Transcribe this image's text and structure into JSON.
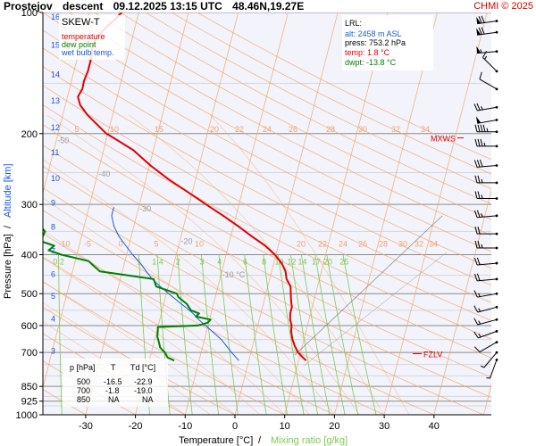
{
  "header": {
    "station": "Prostejov",
    "mode": "descent",
    "datetime": "09.12.2025 13:15 UTC",
    "coords": "48.46N,19.27E",
    "brand": "CHMI © 2025"
  },
  "chart_data": {
    "type": "line",
    "title": "SKEW-T",
    "xlabel": "Temperature [°C]",
    "xlabel_sep": "/",
    "xlabel2": "Mixing ratio [g/kg]",
    "ylabel_left": "Pressure [hPa]",
    "ylabel_sep": "/",
    "ylabel_right": "Altitude [km]",
    "x_ticks": [
      "-30",
      "-20",
      "-10",
      "0",
      "10",
      "20",
      "30",
      "40"
    ],
    "x_tick_values": [
      -30,
      -20,
      -10,
      0,
      10,
      20,
      30,
      40
    ],
    "pressure_ticks": [
      "100",
      "200",
      "300",
      "400",
      "500",
      "600",
      "700",
      "850",
      "925",
      "1000"
    ],
    "pressure_tick_values": [
      100,
      200,
      300,
      400,
      500,
      600,
      700,
      850,
      925,
      1000
    ],
    "altitude_ticks": [
      "16",
      "15",
      "14",
      "13",
      "12",
      "11",
      "10",
      "9",
      "8",
      "7",
      "6",
      "5",
      "4",
      "3"
    ],
    "altitude_pressures": [
      102,
      120,
      142,
      165,
      192,
      222,
      257,
      296,
      340,
      390,
      445,
      505,
      575,
      690
    ],
    "legend": {
      "items": [
        {
          "label": "temperature",
          "color": "#e00000"
        },
        {
          "label": "dew point",
          "color": "#008000"
        },
        {
          "label": "wet bulb temp.",
          "color": "#1a56e0"
        }
      ]
    },
    "lrl": {
      "heading": "LRL:",
      "alt": "alt: 2458 m ASL",
      "press": "press: 753.2 hPa",
      "temp": "temp: 1.8 °C",
      "dwpt": "dwpt: -13.8 °C"
    },
    "level_markers": [
      {
        "label": "MXWS",
        "pressure": 205
      },
      {
        "label": "FZLV",
        "pressure": 705
      }
    ],
    "table": {
      "headers": [
        "p [hPa]",
        "T",
        "Td [°C]"
      ],
      "rows": [
        [
          "500",
          "-16.5",
          "-22.9"
        ],
        [
          "700",
          "-1.8",
          "-19.0"
        ],
        [
          "850",
          "NA",
          "NA"
        ]
      ]
    },
    "isotherm_labels": {
      "values": [
        "-80 °C",
        "-70",
        "-60",
        "-50",
        "-40",
        "-30",
        "-20",
        "-10 °C"
      ],
      "pressures": [
        118,
        146,
        175,
        211,
        256,
        312,
        376,
        455
      ]
    },
    "mixing_ratio_labels": [
      "0.2",
      "1",
      "1.4",
      "2",
      "3",
      "4",
      "6",
      "8",
      "10",
      "12",
      "14",
      "17",
      "20",
      "25"
    ],
    "mixing_ratio_values": [
      0.2,
      1,
      1.4,
      2,
      3,
      4,
      6,
      8,
      10,
      12,
      14,
      17,
      20,
      25
    ],
    "adiabat_labels_upper": [
      "5",
      "10",
      "15",
      "20",
      "22",
      "24",
      "26",
      "28",
      "30",
      "32",
      "34"
    ],
    "adiabat_labels_lower": [
      "-10",
      "-5",
      "0",
      "5",
      "10",
      "20",
      "22",
      "24",
      "26",
      "28",
      "30",
      "32",
      "34"
    ],
    "temperature": [
      [
        733,
        11.5
      ],
      [
        720,
        10.7
      ],
      [
        700,
        9.5
      ],
      [
        675,
        8.5
      ],
      [
        650,
        7.7
      ],
      [
        620,
        7.0
      ],
      [
        600,
        6.8
      ],
      [
        580,
        6.2
      ],
      [
        560,
        5.9
      ],
      [
        540,
        5.9
      ],
      [
        520,
        5.4
      ],
      [
        500,
        5.0
      ],
      [
        480,
        4.6
      ],
      [
        460,
        3.4
      ],
      [
        440,
        2.8
      ],
      [
        420,
        1.6
      ],
      [
        400,
        -0.2
      ],
      [
        380,
        -2.6
      ],
      [
        360,
        -5.8
      ],
      [
        340,
        -9.0
      ],
      [
        320,
        -12.6
      ],
      [
        300,
        -16.6
      ],
      [
        280,
        -20.8
      ],
      [
        260,
        -25.4
      ],
      [
        240,
        -29.8
      ],
      [
        220,
        -34.0
      ],
      [
        205,
        -38.6
      ],
      [
        200,
        -40.3
      ],
      [
        190,
        -42.6
      ],
      [
        180,
        -45.0
      ],
      [
        170,
        -47.0
      ],
      [
        162,
        -47.9
      ],
      [
        155,
        -47.4
      ],
      [
        148,
        -47.5
      ],
      [
        140,
        -47.2
      ],
      [
        130,
        -47.2
      ],
      [
        122,
        -47.5
      ],
      [
        115,
        -47.2
      ],
      [
        108,
        -45.6
      ],
      [
        104,
        -44.4
      ],
      [
        101,
        -43.7
      ],
      [
        100,
        -43.4
      ]
    ],
    "dewpoint": [
      [
        733,
        -15.0
      ],
      [
        720,
        -16.5
      ],
      [
        700,
        -17.3
      ],
      [
        680,
        -18.5
      ],
      [
        660,
        -19.0
      ],
      [
        640,
        -19.6
      ],
      [
        620,
        -19.8
      ],
      [
        605,
        -20.0
      ],
      [
        600,
        -12.0
      ],
      [
        590,
        -10.2
      ],
      [
        580,
        -9.8
      ],
      [
        570,
        -12.9
      ],
      [
        560,
        -12.4
      ],
      [
        550,
        -14.2
      ],
      [
        530,
        -15.4
      ],
      [
        510,
        -17.4
      ],
      [
        500,
        -17.9
      ],
      [
        480,
        -22.4
      ],
      [
        460,
        -23.3
      ],
      [
        440,
        -34.5
      ],
      [
        425,
        -36.2
      ],
      [
        415,
        -37.3
      ],
      [
        400,
        -43.1
      ],
      [
        390,
        -45.9
      ],
      [
        380,
        -45.0
      ],
      [
        370,
        -48.0
      ],
      [
        350,
        -47.6
      ],
      [
        330,
        -50.0
      ],
      [
        310,
        -52.4
      ],
      [
        290,
        -56.3
      ],
      [
        270,
        -60.2
      ],
      [
        250,
        -65.3
      ],
      [
        230,
        -70.5
      ],
      [
        210,
        -74.6
      ],
      [
        190,
        -80.0
      ],
      [
        170,
        -84.6
      ],
      [
        160,
        -89.8
      ],
      [
        150,
        -94.1
      ],
      [
        145,
        -95.9
      ],
      [
        135,
        -96.2
      ],
      [
        125,
        -96.0
      ],
      [
        115,
        -96.3
      ],
      [
        108,
        -95.8
      ],
      [
        103,
        -95.8
      ],
      [
        100,
        -96.3
      ]
    ],
    "wetbulb": [
      [
        733,
        -2.0
      ],
      [
        700,
        -3.9
      ],
      [
        650,
        -6.6
      ],
      [
        600,
        -10.5
      ],
      [
        580,
        -12.2
      ],
      [
        560,
        -13.6
      ],
      [
        540,
        -15.5
      ],
      [
        520,
        -17.5
      ],
      [
        500,
        -19.5
      ],
      [
        480,
        -21.6
      ],
      [
        460,
        -23.6
      ],
      [
        440,
        -25.2
      ],
      [
        420,
        -26.8
      ],
      [
        400,
        -28.8
      ],
      [
        380,
        -30.6
      ],
      [
        360,
        -32.5
      ],
      [
        340,
        -34.0
      ],
      [
        320,
        -35.0
      ],
      [
        305,
        -35.0
      ]
    ],
    "wind_barbs": [
      {
        "p": 105,
        "spd": 70,
        "dir": 262
      },
      {
        "p": 112,
        "spd": 70,
        "dir": 262
      },
      {
        "p": 125,
        "spd": 55,
        "dir": 265
      },
      {
        "p": 140,
        "spd": 15,
        "dir": 315
      },
      {
        "p": 155,
        "spd": 10,
        "dir": 300
      },
      {
        "p": 172,
        "spd": 25,
        "dir": 260
      },
      {
        "p": 185,
        "spd": 50,
        "dir": 260
      },
      {
        "p": 198,
        "spd": 45,
        "dir": 270
      },
      {
        "p": 215,
        "spd": 35,
        "dir": 270
      },
      {
        "p": 240,
        "spd": 30,
        "dir": 265
      },
      {
        "p": 265,
        "spd": 25,
        "dir": 270
      },
      {
        "p": 290,
        "spd": 25,
        "dir": 270
      },
      {
        "p": 320,
        "spd": 25,
        "dir": 265
      },
      {
        "p": 355,
        "spd": 20,
        "dir": 270
      },
      {
        "p": 385,
        "spd": 25,
        "dir": 270
      },
      {
        "p": 420,
        "spd": 20,
        "dir": 265
      },
      {
        "p": 460,
        "spd": 20,
        "dir": 265
      },
      {
        "p": 500,
        "spd": 15,
        "dir": 260
      },
      {
        "p": 540,
        "spd": 15,
        "dir": 255
      },
      {
        "p": 580,
        "spd": 15,
        "dir": 255
      },
      {
        "p": 620,
        "spd": 15,
        "dir": 250
      },
      {
        "p": 660,
        "spd": 10,
        "dir": 240
      },
      {
        "p": 700,
        "spd": 5,
        "dir": 220
      },
      {
        "p": 730,
        "spd": 5,
        "dir": 200
      }
    ],
    "colors": {
      "temperature": "#e00000",
      "dewpoint": "#008000",
      "wetbulb": "#1a56e0",
      "isotherm": "#f0a86a",
      "adiabat": "#f0a86a",
      "mixing": "#7ec850",
      "isobar": "#888888",
      "plotbg": "#f3f3fb"
    }
  }
}
